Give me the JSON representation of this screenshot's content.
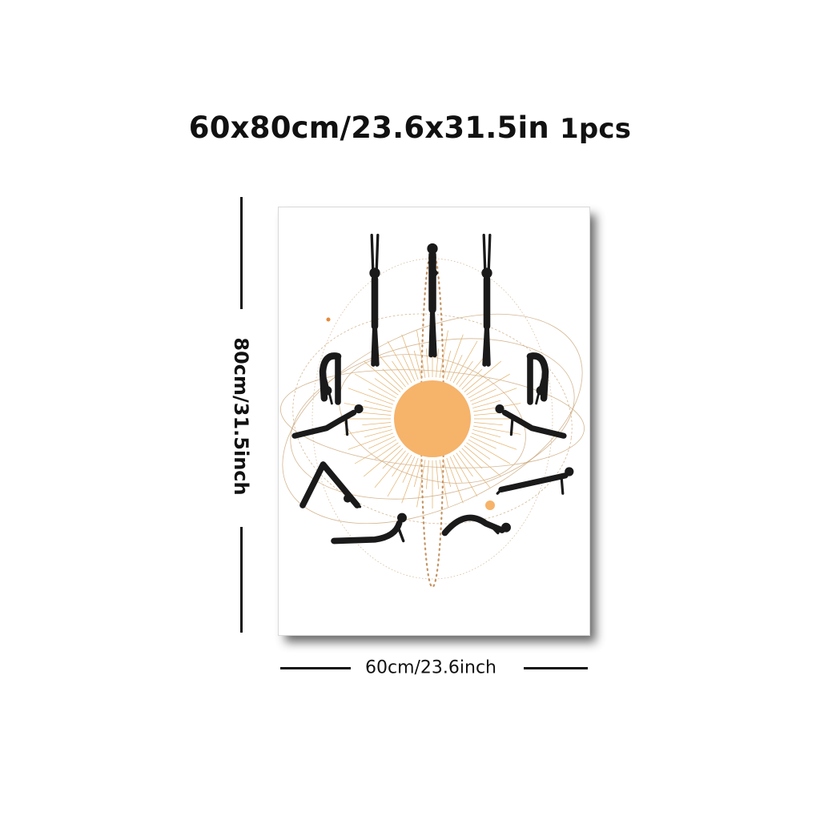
{
  "title": {
    "main": "60x80cm/23.6x31.5in",
    "quantity": "1pcs"
  },
  "dimensions": {
    "height_label": "80cm/31.5inch",
    "width_label": "60cm/23.6inch"
  },
  "artwork": {
    "colors": {
      "sun": "#f6b36a",
      "rays": "#e2b06a",
      "orbit": "#c9a477",
      "figure": "#1a1a1a",
      "accent_dot": "#e68a3a"
    },
    "figures": [
      "raised-arms-pose",
      "prayer-pose",
      "raised-arms-pose",
      "forward-bend-pose",
      "forward-bend-pose",
      "lunge-pose",
      "lunge-pose",
      "downward-dog-pose",
      "plank-pose",
      "cobra-pose",
      "eight-point-pose"
    ]
  }
}
